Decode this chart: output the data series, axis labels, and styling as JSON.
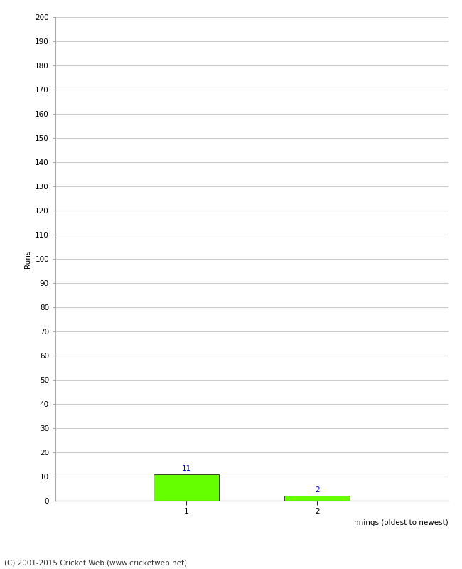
{
  "categories": [
    "1",
    "2"
  ],
  "values": [
    11,
    2
  ],
  "bar_color": "#66ff00",
  "bar_edge_color": "#000000",
  "xlabel": "Innings (oldest to newest)",
  "ylabel": "Runs",
  "ylim": [
    0,
    200
  ],
  "yticks": [
    0,
    10,
    20,
    30,
    40,
    50,
    60,
    70,
    80,
    90,
    100,
    110,
    120,
    130,
    140,
    150,
    160,
    170,
    180,
    190,
    200
  ],
  "annotation_color": "#0000cc",
  "annotation_fontsize": 7.5,
  "footer": "(C) 2001-2015 Cricket Web (www.cricketweb.net)",
  "footer_fontsize": 7.5,
  "background_color": "#ffffff",
  "grid_color": "#cccccc",
  "tick_label_fontsize": 7.5,
  "axis_label_fontsize": 7.5,
  "bar_positions": [
    1,
    2
  ],
  "bar_width": 0.5,
  "xlim": [
    0,
    3
  ]
}
